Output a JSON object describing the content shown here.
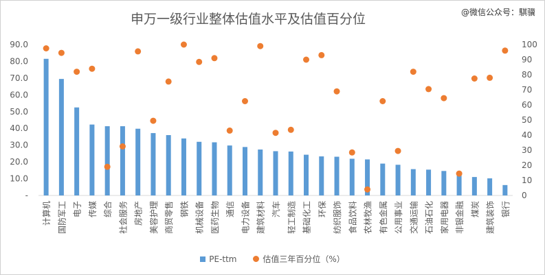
{
  "watermark": "@微信公众号：騏骥",
  "chart_data": {
    "type": "bar",
    "title": "申万一级行业整体估值水平及估值百分位",
    "categories": [
      "计算机",
      "国防军工",
      "电子",
      "传媒",
      "综合",
      "社会服务",
      "房地产",
      "美容护理",
      "商贸零售",
      "钢铁",
      "机械设备",
      "医药生物",
      "通信",
      "电力设备",
      "建筑材料",
      "汽车",
      "轻工制造",
      "基础化工",
      "环保",
      "纺织服饰",
      "食品饮料",
      "农林牧渔",
      "有色金属",
      "公用事业",
      "交通运输",
      "石油石化",
      "家用电器",
      "非银金融",
      "煤炭",
      "建筑装饰",
      "银行"
    ],
    "series": [
      {
        "name": "PE-ttm",
        "type": "bar",
        "axis": "left",
        "color": "#5b9bd5",
        "values": [
          81.5,
          69.5,
          52.5,
          42.3,
          41.3,
          41.3,
          39.8,
          37.2,
          36.0,
          34.0,
          32.0,
          31.7,
          29.8,
          28.9,
          27.4,
          26.4,
          26.2,
          24.3,
          23.3,
          23.1,
          21.9,
          21.5,
          19.0,
          18.3,
          15.7,
          15.4,
          14.6,
          13.0,
          11.0,
          10.2,
          6.2
        ]
      },
      {
        "name": "估值三年百分位（%）",
        "type": "scatter",
        "axis": "right",
        "color": "#ed7d31",
        "values": [
          97.5,
          94.5,
          82.0,
          84.0,
          19.0,
          32.5,
          95.5,
          49.5,
          75.5,
          100.0,
          88.5,
          91.0,
          43.0,
          62.5,
          99.0,
          41.5,
          43.5,
          90.0,
          93.0,
          69.0,
          28.5,
          4.0,
          62.5,
          29.5,
          82.0,
          70.5,
          64.5,
          14.5,
          77.5,
          78.0,
          96.0
        ]
      }
    ],
    "y_left": {
      "min": 0,
      "max": 90,
      "step": 10,
      "ticks": [
        "-",
        "10.0",
        "20.0",
        "30.0",
        "40.0",
        "50.0",
        "60.0",
        "70.0",
        "80.0",
        "90.0"
      ]
    },
    "y_right": {
      "min": 0,
      "max": 100,
      "step": 10,
      "ticks": [
        "0",
        "10",
        "20",
        "30",
        "40",
        "50",
        "60",
        "70",
        "80",
        "90",
        "100"
      ]
    },
    "grid": false,
    "legend_position": "bottom"
  }
}
